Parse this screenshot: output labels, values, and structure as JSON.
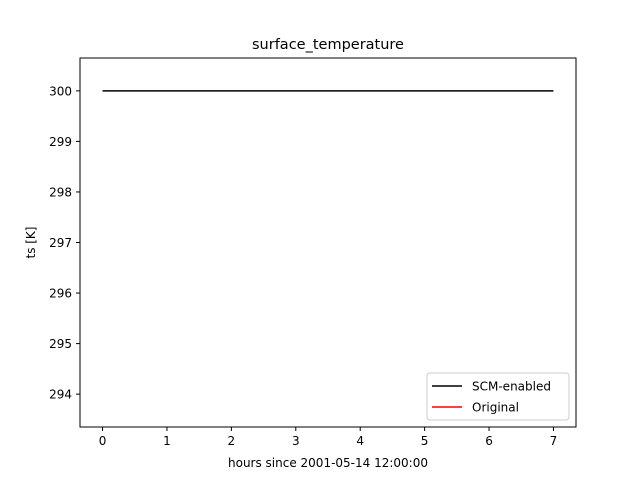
{
  "chart_data": {
    "type": "line",
    "title": "surface_temperature",
    "xlabel": "hours since 2001-05-14 12:00:00",
    "ylabel": "ts [K]",
    "xlim": [
      -0.35,
      7.35
    ],
    "ylim": [
      293.35,
      300.65
    ],
    "xticks": [
      0,
      1,
      2,
      3,
      4,
      5,
      6,
      7
    ],
    "yticks": [
      294,
      295,
      296,
      297,
      298,
      299,
      300
    ],
    "grid": false,
    "legend_position": "lower-right",
    "series": [
      {
        "name": "SCM-enabled",
        "color": "#000000",
        "x": [
          0,
          1,
          2,
          3,
          4,
          5,
          6,
          7
        ],
        "y": [
          300,
          300,
          300,
          300,
          300,
          300,
          300,
          300
        ]
      },
      {
        "name": "Original",
        "color": "#ff0000",
        "x": [],
        "y": []
      }
    ]
  }
}
